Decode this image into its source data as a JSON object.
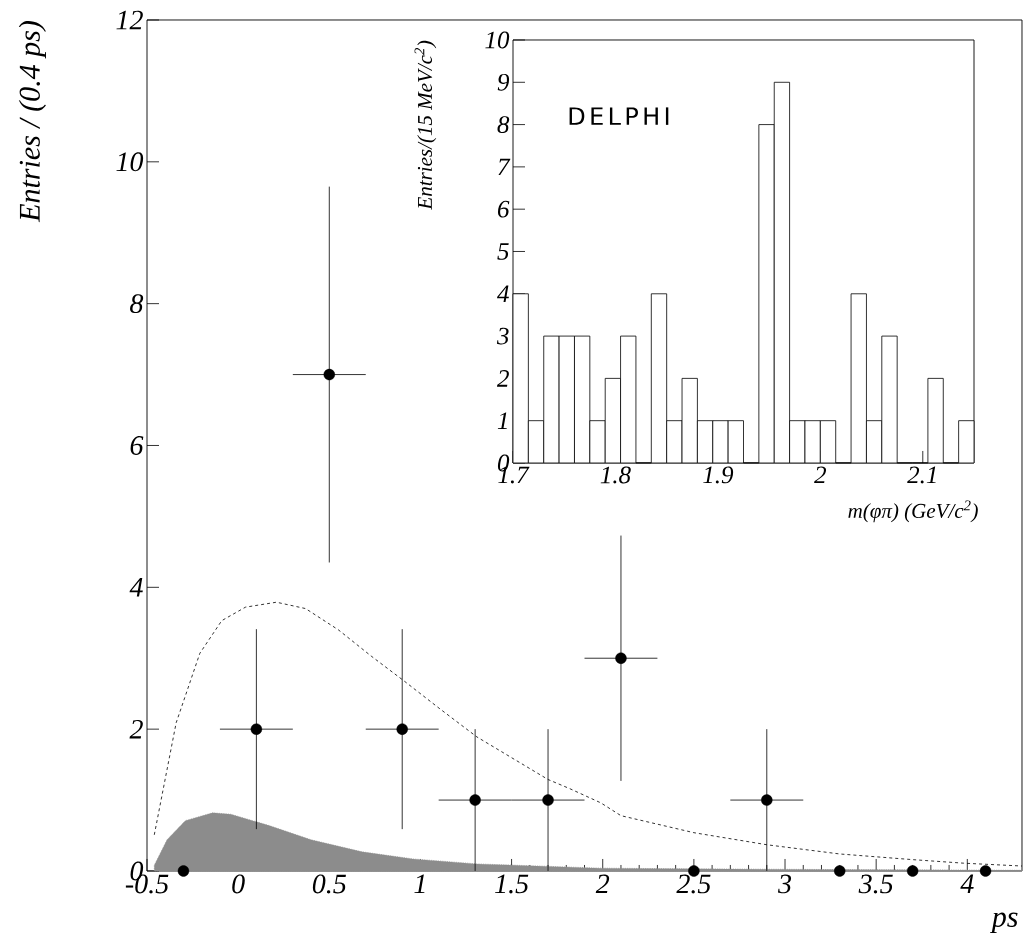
{
  "chart_data": [
    {
      "type": "scatter",
      "xlabel": "ps",
      "ylabel": "Entries / (0.4 ps)",
      "xlim": [
        -0.5,
        4.3
      ],
      "ylim": [
        0,
        12
      ],
      "xticks": [
        -0.5,
        0,
        0.5,
        1,
        1.5,
        2,
        2.5,
        3,
        3.5,
        4
      ],
      "yticks": [
        0,
        2,
        4,
        6,
        8,
        10,
        12
      ],
      "series": [
        {
          "type": "scatter",
          "color": "#000000",
          "marker": "circle",
          "x": [
            -0.3,
            0.1,
            0.5,
            0.9,
            1.3,
            1.7,
            2.1,
            2.5,
            2.9,
            3.3,
            3.7,
            4.1
          ],
          "values": [
            0,
            2,
            7,
            2,
            1,
            1,
            3,
            0,
            1,
            0,
            0,
            0
          ],
          "errors": [
            null,
            1.41,
            2.65,
            1.41,
            1,
            1,
            1.73,
            null,
            1,
            null,
            null,
            null
          ],
          "xerrors": [
            null,
            0.2,
            0.2,
            0.2,
            0.2,
            0.2,
            0.2,
            null,
            0.2,
            null,
            null,
            null
          ]
        },
        {
          "type": "line",
          "line_style": "dashed",
          "color": "#000000",
          "x": [
            -0.46,
            -0.34,
            -0.21,
            -0.09,
            0.04,
            0.21,
            0.37,
            0.55,
            0.73,
            0.91,
            1.11,
            1.31,
            1.57,
            1.7,
            1.82,
            1.99,
            2.1,
            2.5,
            2.9,
            3.3,
            3.7,
            3.98,
            4.3
          ],
          "values": [
            0.51,
            2.09,
            3.07,
            3.53,
            3.72,
            3.79,
            3.7,
            3.4,
            3.03,
            2.68,
            2.28,
            1.89,
            1.49,
            1.29,
            1.16,
            0.96,
            0.78,
            0.54,
            0.37,
            0.24,
            0.16,
            0.11,
            0.07
          ]
        },
        {
          "type": "area",
          "line_style": "dotted",
          "color": "#8c8c8c",
          "x": [
            -0.46,
            -0.39,
            -0.29,
            -0.14,
            -0.04,
            0.17,
            0.4,
            0.68,
            0.96,
            1.31,
            1.99,
            2.5,
            3.3,
            4.3
          ],
          "values": [
            0.08,
            0.44,
            0.71,
            0.82,
            0.8,
            0.64,
            0.44,
            0.27,
            0.17,
            0.1,
            0.04,
            0.03,
            0.02,
            0.01
          ]
        }
      ]
    },
    {
      "type": "histogram",
      "xlabel": "m(φπ)  (GeV/c$^{2}$)",
      "ylabel": "Entries/(15 MeV/c$^{2}$)",
      "annotations": [
        "DELPHI"
      ],
      "xlim": [
        1.7,
        2.15
      ],
      "ylim": [
        0,
        10
      ],
      "xticks": [
        1.7,
        1.8,
        1.9,
        2,
        2.1
      ],
      "yticks": [
        0,
        1,
        2,
        3,
        4,
        5,
        6,
        7,
        8,
        9,
        10
      ],
      "color": "#000000",
      "bins": [
        1.7,
        1.715,
        1.73,
        1.745,
        1.76,
        1.775,
        1.79,
        1.805,
        1.82,
        1.835,
        1.85,
        1.865,
        1.88,
        1.895,
        1.91,
        1.925,
        1.94,
        1.955,
        1.97,
        1.985,
        2.0,
        2.015,
        2.03,
        2.045,
        2.06,
        2.075,
        2.09,
        2.105,
        2.12,
        2.135,
        2.15
      ],
      "values": [
        4,
        1,
        3,
        3,
        3,
        1,
        2,
        3,
        0,
        4,
        1,
        2,
        1,
        1,
        1,
        0,
        8,
        9,
        1,
        1,
        1,
        0,
        4,
        1,
        3,
        0,
        0,
        2,
        0,
        1
      ]
    }
  ]
}
